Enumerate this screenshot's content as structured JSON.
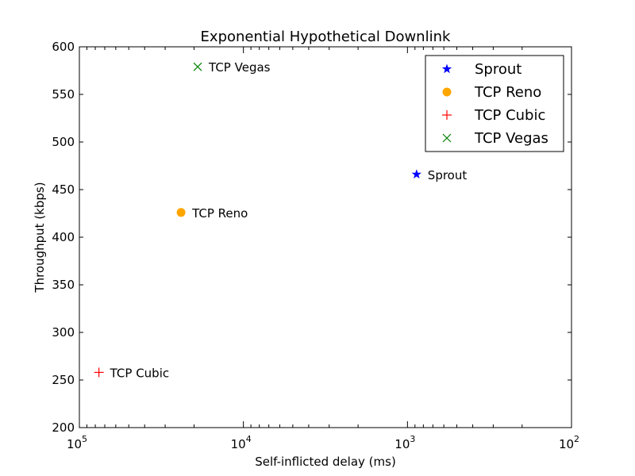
{
  "chart_data": {
    "type": "scatter",
    "title": "Exponential Hypothetical Downlink",
    "xlabel": "Self-inflicted delay (ms)",
    "ylabel": "Throughput (kbps)",
    "x_scale": "log",
    "x_inverted": true,
    "xlim": [
      100000,
      100
    ],
    "ylim": [
      200,
      600
    ],
    "x_ticks": [
      {
        "value": 100000,
        "base": "10",
        "exp": "5"
      },
      {
        "value": 10000,
        "base": "10",
        "exp": "4"
      },
      {
        "value": 1000,
        "base": "10",
        "exp": "3"
      },
      {
        "value": 100,
        "base": "10",
        "exp": "2"
      }
    ],
    "y_ticks": [
      200,
      250,
      300,
      350,
      400,
      450,
      500,
      550,
      600
    ],
    "legend_position": "top-right",
    "series": [
      {
        "name": "Sprout",
        "marker": "star",
        "color": "#0000ff",
        "x": 880,
        "y": 466,
        "label": "Sprout"
      },
      {
        "name": "TCP Reno",
        "marker": "circle",
        "color": "#ffa500",
        "x": 24000,
        "y": 426,
        "label": "TCP Reno"
      },
      {
        "name": "TCP Cubic",
        "marker": "plus",
        "color": "#ff0000",
        "x": 76000,
        "y": 258,
        "label": "TCP Cubic"
      },
      {
        "name": "TCP Vegas",
        "marker": "x",
        "color": "#008000",
        "x": 19000,
        "y": 579,
        "label": "TCP Vegas"
      }
    ]
  }
}
